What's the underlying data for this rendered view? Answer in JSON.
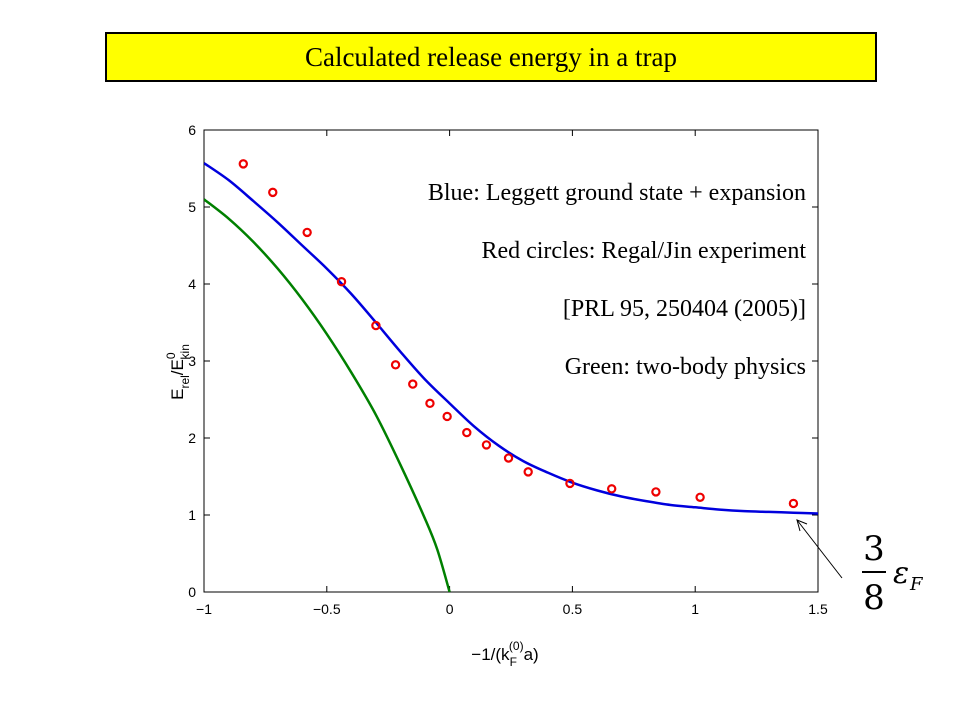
{
  "slide_title": "Calculated release energy in a trap",
  "annotation_formula": {
    "numerator": "3",
    "denominator": "8",
    "symbol": "ε",
    "subscript": "F"
  },
  "colors": {
    "title_background": "#ffff00",
    "blue": "#0000dd",
    "red": "#ee0000",
    "green": "#008000"
  },
  "chart_data": {
    "type": "line",
    "xlabel": {
      "main": "−1/(k",
      "sub": "F",
      "sup": "(0)",
      "tail": "a)"
    },
    "ylabel": {
      "main": "E",
      "sub": "rel",
      "sep": "/E",
      "sup2": "0",
      "sub2": "kin"
    },
    "xlim": [
      -1,
      1.5
    ],
    "ylim": [
      0,
      6
    ],
    "xticks": [
      -1,
      -0.5,
      0,
      0.5,
      1,
      1.5
    ],
    "xtick_labels": [
      "−1",
      "−0.5",
      "0",
      "0.5",
      "1",
      "1.5"
    ],
    "yticks": [
      0,
      1,
      2,
      3,
      4,
      5,
      6
    ],
    "ytick_labels": [
      "0",
      "1",
      "2",
      "3",
      "4",
      "5",
      "6"
    ],
    "grid": false,
    "legend_text": [
      "Blue: Leggett ground state + expansion",
      "Red circles: Regal/Jin experiment",
      "[PRL 95, 250404 (2005)]",
      "Green: two-body physics"
    ],
    "series": [
      {
        "color": "#0000dd",
        "kind": "line",
        "x": [
          -1,
          -0.9,
          -0.8,
          -0.7,
          -0.6,
          -0.5,
          -0.4,
          -0.3,
          -0.2,
          -0.1,
          0,
          0.1,
          0.2,
          0.3,
          0.4,
          0.5,
          0.6,
          0.7,
          0.8,
          0.9,
          1.0,
          1.1,
          1.2,
          1.3,
          1.4,
          1.5
        ],
        "y": [
          5.57,
          5.35,
          5.08,
          4.8,
          4.5,
          4.2,
          3.87,
          3.5,
          3.12,
          2.76,
          2.45,
          2.15,
          1.9,
          1.7,
          1.55,
          1.42,
          1.32,
          1.24,
          1.18,
          1.13,
          1.1,
          1.07,
          1.05,
          1.04,
          1.03,
          1.02
        ]
      },
      {
        "color": "#ee0000",
        "kind": "scatter",
        "x": [
          -0.84,
          -0.72,
          -0.58,
          -0.44,
          -0.3,
          -0.22,
          -0.15,
          -0.08,
          -0.01,
          0.07,
          0.15,
          0.24,
          0.32,
          0.49,
          0.66,
          0.84,
          1.02,
          1.4
        ],
        "y": [
          5.56,
          5.19,
          4.67,
          4.03,
          3.46,
          2.95,
          2.7,
          2.45,
          2.28,
          2.07,
          1.91,
          1.74,
          1.56,
          1.41,
          1.34,
          1.3,
          1.23,
          1.15
        ]
      },
      {
        "color": "#008000",
        "kind": "line",
        "x": [
          -1,
          -0.9,
          -0.8,
          -0.7,
          -0.6,
          -0.5,
          -0.4,
          -0.3,
          -0.2,
          -0.1,
          -0.05,
          0
        ],
        "y": [
          5.1,
          4.85,
          4.55,
          4.2,
          3.8,
          3.35,
          2.85,
          2.3,
          1.65,
          0.95,
          0.55,
          0.0
        ]
      }
    ]
  }
}
